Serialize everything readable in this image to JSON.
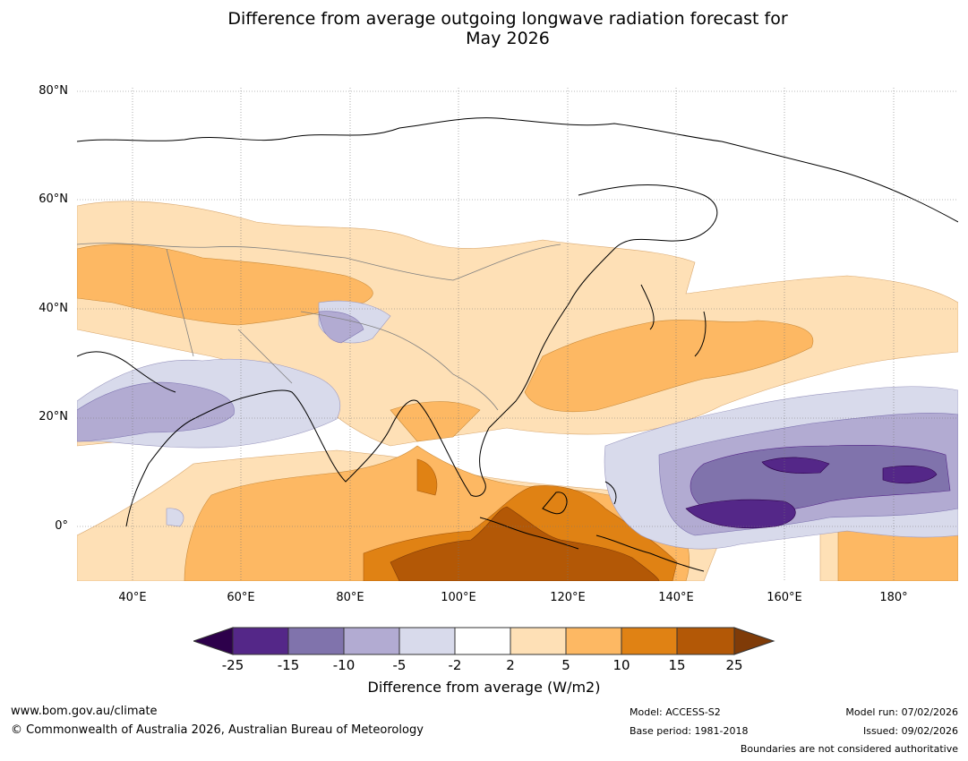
{
  "title": {
    "line1": "Difference from average outgoing longwave radiation forecast for",
    "line2": "May 2026"
  },
  "latitude_labels": [
    "80°N",
    "60°N",
    "40°N",
    "20°N",
    "0°"
  ],
  "longitude_labels": [
    "40°E",
    "60°E",
    "80°E",
    "100°E",
    "120°E",
    "140°E",
    "160°E",
    "180°"
  ],
  "colorbar": {
    "ticks": [
      "-25",
      "-15",
      "-10",
      "-5",
      "-2",
      "2",
      "5",
      "10",
      "15",
      "25"
    ],
    "label": "Difference from average (W/m2)",
    "colors": {
      "below_min": "#2d004b",
      "bins": [
        "#542788",
        "#8073ac",
        "#b2abd2",
        "#d8daeb",
        "#ffffff",
        "#fee0b6",
        "#fdb863",
        "#e08214",
        "#b35806"
      ],
      "above_max": "#7f3b08"
    }
  },
  "footer": {
    "website": "www.bom.gov.au/climate",
    "copyright": "© Commonwealth of Australia 2026, Australian Bureau of Meteorology",
    "model": "Model: ACCESS-S2",
    "base_period": "Base period: 1981-2018",
    "model_run": "Model run: 07/02/2026",
    "issued": "Issued: 09/02/2026",
    "disclaimer": "Boundaries are not considered authoritative"
  }
}
